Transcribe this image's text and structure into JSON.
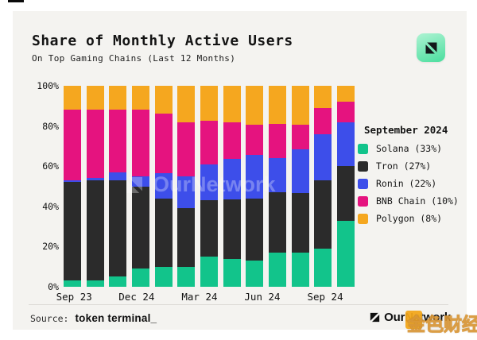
{
  "header": {
    "title": "Share of Monthly Active Users",
    "subtitle": "On Top Gaming Chains (Last 12 Months)",
    "logo_colors": {
      "bg_start": "#AEF3D3",
      "bg_end": "#4ADE9E",
      "glyph": "#13181a"
    }
  },
  "chart_data": {
    "type": "bar",
    "stacked": true,
    "unit": "%",
    "categories": [
      "Sep 23",
      "",
      "",
      "Dec 24",
      "",
      "",
      "Mar 24",
      "",
      "",
      "Jun 24",
      "",
      "",
      "Sep 24"
    ],
    "series": [
      {
        "name": "Solana",
        "color": "#12C48B",
        "values": [
          3,
          3,
          5,
          9,
          10,
          10,
          15,
          14,
          13,
          17,
          17,
          19,
          33
        ]
      },
      {
        "name": "Tron",
        "color": "#2B2B2B",
        "values": [
          49,
          50,
          48,
          41,
          34,
          29,
          28,
          29.5,
          31,
          30,
          29.5,
          34,
          27
        ]
      },
      {
        "name": "Ronin",
        "color": "#3D4EEA",
        "values": [
          1,
          1,
          4,
          5,
          12.5,
          16,
          18,
          20,
          21.5,
          17,
          22,
          23,
          22
        ]
      },
      {
        "name": "BNB Chain",
        "color": "#E5137F",
        "values": [
          35,
          34,
          31,
          33,
          29.5,
          27,
          21.5,
          18.5,
          15,
          17,
          12,
          13,
          10
        ]
      },
      {
        "name": "Polygon",
        "color": "#F5A71F",
        "values": [
          12,
          12,
          12,
          12,
          14,
          18,
          17.5,
          18,
          19.5,
          19,
          19.5,
          11,
          8
        ]
      }
    ],
    "ylim": [
      0,
      100
    ],
    "yticks": [
      "0%",
      "20%",
      "40%",
      "60%",
      "80%",
      "100%"
    ],
    "xticks": [
      "Sep 23",
      "Dec 24",
      "Mar 24",
      "Jun 24",
      "Sep 24"
    ],
    "grid": false,
    "legend_position": "right",
    "title": "Share of Monthly Active Users",
    "subtitle": "On Top Gaming Chains (Last 12 Months)"
  },
  "legend": {
    "title": "September 2024",
    "items": [
      {
        "label": "Solana (33%)",
        "color": "#12C48B"
      },
      {
        "label": "Tron (27%)",
        "color": "#2B2B2B"
      },
      {
        "label": "Ronin (22%)",
        "color": "#3D4EEA"
      },
      {
        "label": "BNB Chain (10%)",
        "color": "#E5137F"
      },
      {
        "label": "Polygon (8%)",
        "color": "#F5A71F"
      }
    ]
  },
  "watermarks": {
    "chart": "OurNetwork",
    "stamp": "金色财经"
  },
  "footer": {
    "source_label": "Source:",
    "source_value": "token terminal_",
    "brand": "OurNetwork"
  }
}
